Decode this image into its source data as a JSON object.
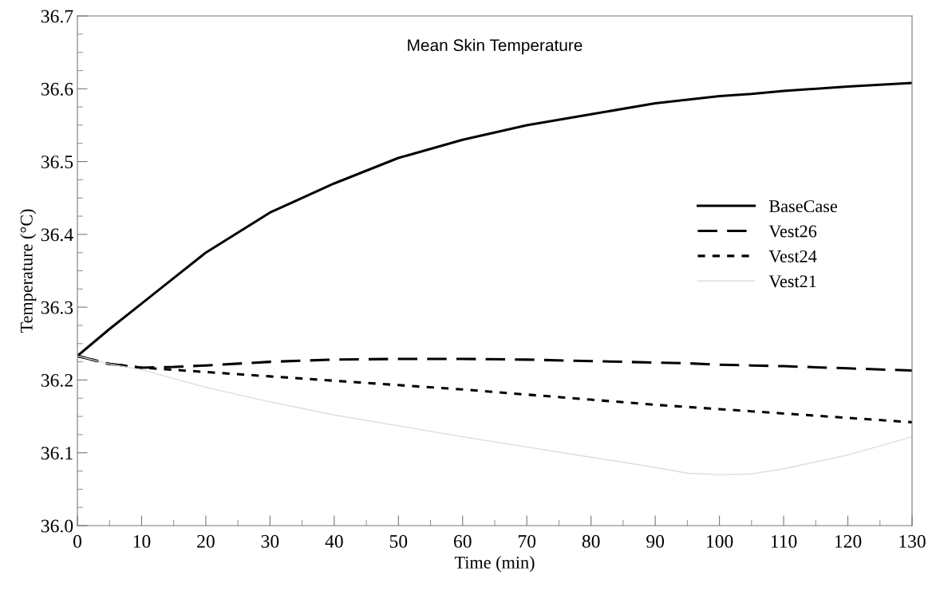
{
  "chart_data": {
    "type": "line",
    "title": "Mean Skin Temperature",
    "xlabel": "Time (min)",
    "ylabel": "Temperature (°C)",
    "x": [
      0,
      5,
      10,
      15,
      20,
      30,
      40,
      50,
      60,
      70,
      80,
      90,
      95,
      100,
      105,
      110,
      120,
      130
    ],
    "series": [
      {
        "name": "BaseCase",
        "color": "#000000",
        "line_style": "solid",
        "values": [
          36.233,
          36.27,
          36.305,
          36.34,
          36.375,
          36.43,
          36.47,
          36.505,
          36.53,
          36.55,
          36.565,
          36.58,
          36.585,
          36.59,
          36.593,
          36.597,
          36.603,
          36.608
        ]
      },
      {
        "name": "Vest26",
        "color": "#000000",
        "line_style": "dashed",
        "values": [
          36.233,
          36.222,
          36.217,
          36.218,
          36.22,
          36.225,
          36.228,
          36.229,
          36.229,
          36.228,
          36.226,
          36.224,
          36.223,
          36.221,
          36.22,
          36.219,
          36.216,
          36.213
        ]
      },
      {
        "name": "Vest24",
        "color": "#000000",
        "line_style": "dotted",
        "values": [
          36.233,
          36.222,
          36.217,
          36.214,
          36.211,
          36.205,
          36.199,
          36.193,
          36.187,
          36.18,
          36.173,
          36.166,
          36.163,
          36.16,
          36.157,
          36.154,
          36.148,
          36.142
        ]
      },
      {
        "name": "Vest21",
        "color": "#dddddd",
        "line_style": "solid",
        "values": [
          36.233,
          36.222,
          36.214,
          36.202,
          36.19,
          36.17,
          36.152,
          36.137,
          36.122,
          36.108,
          36.094,
          36.08,
          36.072,
          36.07,
          36.071,
          36.078,
          36.097,
          36.122
        ]
      }
    ],
    "xlim": [
      0,
      130
    ],
    "xticks": [
      0,
      10,
      20,
      30,
      40,
      50,
      60,
      70,
      80,
      90,
      100,
      110,
      120,
      130
    ],
    "ylim": [
      36.0,
      36.7
    ],
    "yticks": [
      {
        "value": 36.0,
        "label": "36.0"
      },
      36.1,
      36.2,
      36.3,
      36.4,
      36.5,
      36.6,
      36.7
    ],
    "grid": false,
    "legend": "right",
    "marker": "none"
  }
}
